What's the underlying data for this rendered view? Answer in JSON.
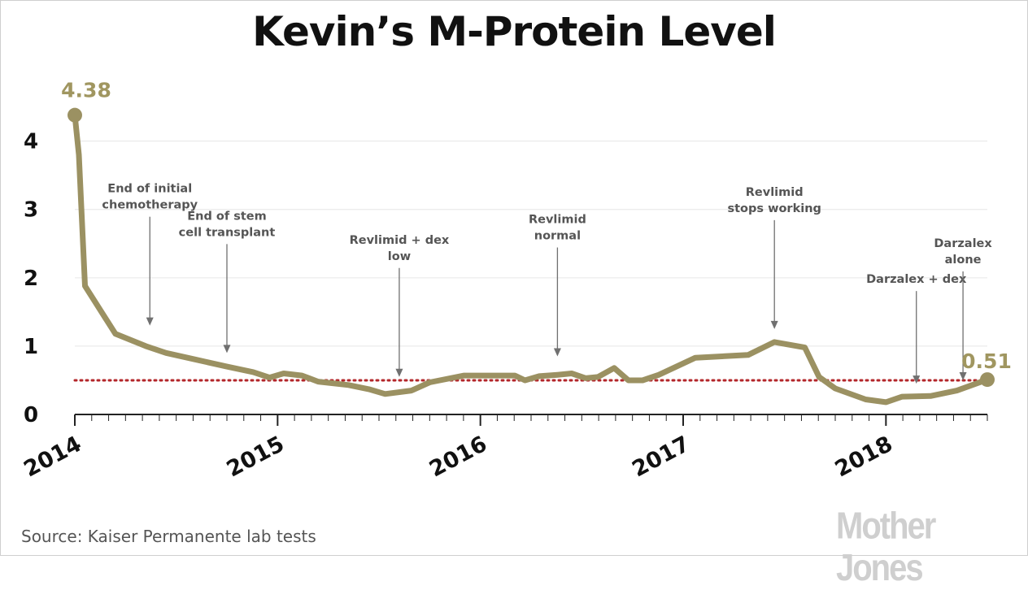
{
  "title": "Kevin’s M-Protein Level",
  "source": "Source: Kaiser Permanente lab tests",
  "logo_text": "Mother Jones",
  "colors": {
    "line": "#9b9162",
    "label": "#a09660",
    "threshold": "#b3262a",
    "grid": "#e6e6e6",
    "annotation": "#707070"
  },
  "chart_data": {
    "type": "line",
    "title": "Kevin’s M-Protein Level",
    "xlabel": "",
    "ylabel": "",
    "xlim": [
      2014.0,
      2018.5
    ],
    "ylim": [
      0,
      4.4
    ],
    "yticks": [
      0,
      1,
      2,
      3,
      4
    ],
    "xticks": [
      2014,
      2015,
      2016,
      2017,
      2018
    ],
    "grid": true,
    "minor_x_ticks_per_year": 12,
    "threshold": 0.5,
    "series": [
      {
        "name": "",
        "x": [
          2014.0,
          2014.02,
          2014.05,
          2014.2,
          2014.35,
          2014.45,
          2014.6,
          2014.75,
          2014.88,
          2014.96,
          2015.03,
          2015.12,
          2015.2,
          2015.35,
          2015.45,
          2015.53,
          2015.66,
          2015.75,
          2015.92,
          2016.17,
          2016.22,
          2016.29,
          2016.38,
          2016.45,
          2016.52,
          2016.58,
          2016.66,
          2016.73,
          2016.8,
          2016.88,
          2017.06,
          2017.32,
          2017.45,
          2017.6,
          2017.67,
          2017.75,
          2017.9,
          2018.0,
          2018.08,
          2018.22,
          2018.35,
          2018.5
        ],
        "y": [
          4.38,
          3.8,
          1.88,
          1.18,
          1.0,
          0.9,
          0.8,
          0.7,
          0.62,
          0.54,
          0.6,
          0.57,
          0.48,
          0.43,
          0.37,
          0.3,
          0.35,
          0.47,
          0.57,
          0.57,
          0.5,
          0.56,
          0.58,
          0.6,
          0.53,
          0.55,
          0.68,
          0.5,
          0.5,
          0.58,
          0.83,
          0.87,
          1.06,
          0.98,
          0.55,
          0.38,
          0.22,
          0.18,
          0.26,
          0.27,
          0.35,
          0.51
        ]
      }
    ],
    "end_labels": {
      "start": "4.38",
      "end": "0.51"
    },
    "annotations": [
      {
        "lines": [
          "End of initial",
          "chemotherapy"
        ],
        "x": 2014.37,
        "y": 1.3
      },
      {
        "lines": [
          "End of stem",
          "cell transplant"
        ],
        "x": 2014.75,
        "y": 0.9
      },
      {
        "lines": [
          "Revlimid + dex",
          "low"
        ],
        "x": 2015.6,
        "y": 0.55
      },
      {
        "lines": [
          "Revlimid",
          "normal"
        ],
        "x": 2016.38,
        "y": 0.85
      },
      {
        "lines": [
          "Revlimid",
          "stops working"
        ],
        "x": 2017.45,
        "y": 1.25
      },
      {
        "lines": [
          "Darzalex + dex"
        ],
        "x": 2018.15,
        "y": 0.45
      },
      {
        "lines": [
          "Darzalex",
          "alone"
        ],
        "x": 2018.38,
        "y": 0.5
      }
    ]
  }
}
